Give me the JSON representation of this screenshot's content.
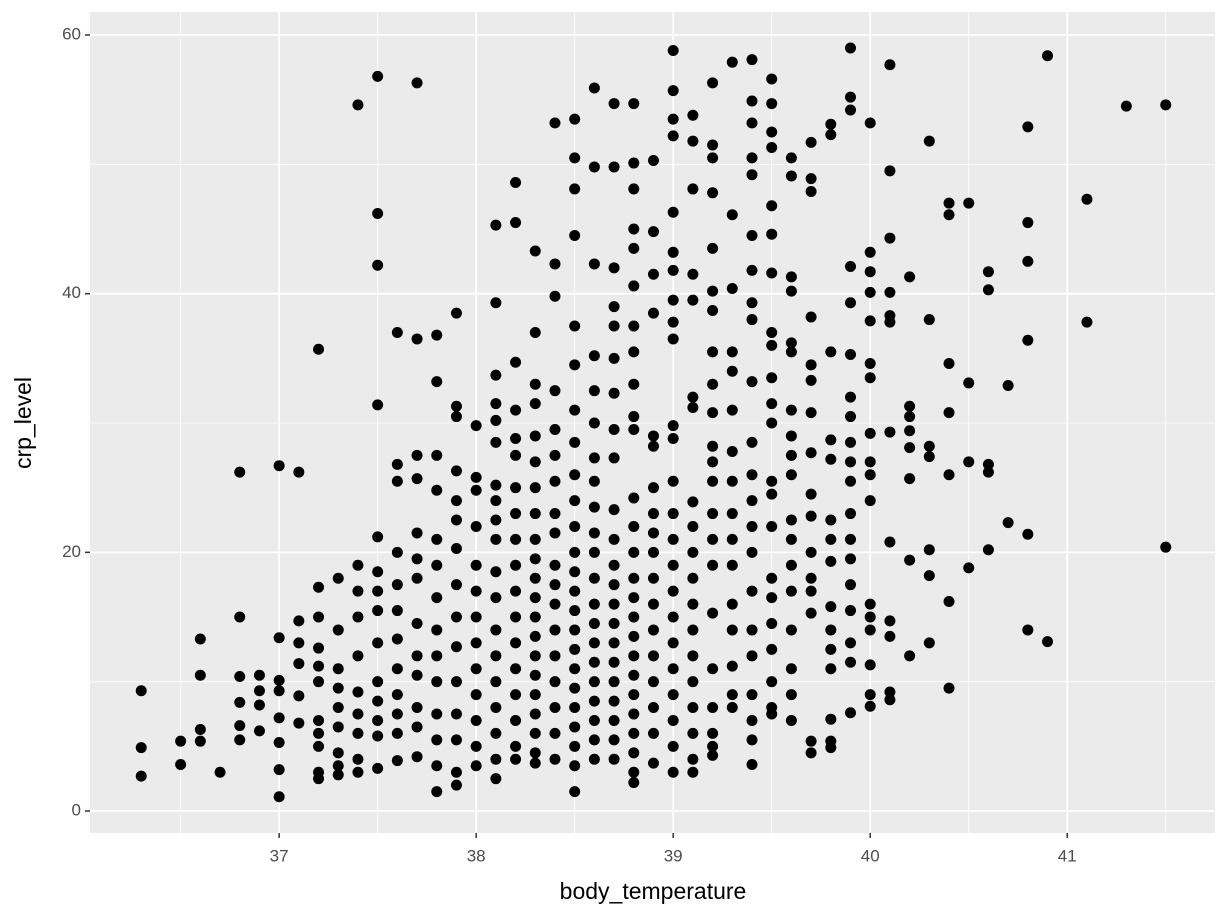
{
  "chart_data": {
    "type": "scatter",
    "x_label": "body_temperature",
    "y_label": "crp_level",
    "xlim": [
      36.04,
      41.75
    ],
    "ylim": [
      -1.7,
      61.78
    ],
    "xticks": [
      37,
      38,
      39,
      40,
      41
    ],
    "yticks": [
      0,
      20,
      40,
      60
    ],
    "grid": true,
    "color": "#000000",
    "x": [
      36.3,
      36.3,
      36.3,
      36.5,
      36.5,
      36.6,
      36.6,
      36.6,
      36.6,
      36.7,
      36.8,
      36.8,
      36.8,
      36.8,
      36.8,
      36.8,
      36.9,
      36.9,
      36.9,
      36.9,
      37.0,
      37.0,
      37.0,
      37.0,
      37.0,
      37.0,
      37.0,
      37.0,
      37.1,
      37.1,
      37.1,
      37.1,
      37.1,
      37.1,
      37.2,
      37.2,
      37.2,
      37.2,
      37.2,
      37.2,
      37.2,
      37.2,
      37.2,
      37.2,
      37.2,
      37.3,
      37.3,
      37.3,
      37.3,
      37.3,
      37.3,
      37.3,
      37.3,
      37.3,
      37.4,
      37.4,
      37.4,
      37.4,
      37.4,
      37.4,
      37.4,
      37.4,
      37.4,
      37.4,
      37.5,
      37.5,
      37.5,
      37.5,
      37.5,
      37.5,
      37.5,
      37.5,
      37.5,
      37.5,
      37.5,
      37.5,
      37.5,
      37.5,
      37.6,
      37.6,
      37.6,
      37.6,
      37.6,
      37.6,
      37.6,
      37.6,
      37.6,
      37.6,
      37.6,
      37.6,
      37.7,
      37.7,
      37.7,
      37.7,
      37.7,
      37.7,
      37.7,
      37.7,
      37.7,
      37.7,
      37.7,
      37.7,
      37.7,
      37.8,
      37.8,
      37.8,
      37.8,
      37.8,
      37.8,
      37.8,
      37.8,
      37.8,
      37.8,
      37.8,
      37.8,
      37.8,
      37.8,
      37.9,
      37.9,
      37.9,
      37.9,
      37.9,
      37.9,
      37.9,
      37.9,
      37.9,
      37.9,
      37.9,
      37.9,
      37.9,
      37.9,
      37.9,
      38.0,
      38.0,
      38.0,
      38.0,
      38.0,
      38.0,
      38.0,
      38.0,
      38.0,
      38.0,
      38.0,
      38.0,
      38.0,
      38.1,
      38.1,
      38.1,
      38.1,
      38.1,
      38.1,
      38.1,
      38.1,
      38.1,
      38.1,
      38.1,
      38.1,
      38.1,
      38.1,
      38.1,
      38.1,
      38.1,
      38.1,
      38.1,
      38.2,
      38.2,
      38.2,
      38.2,
      38.2,
      38.2,
      38.2,
      38.2,
      38.2,
      38.2,
      38.2,
      38.2,
      38.2,
      38.2,
      38.2,
      38.2,
      38.2,
      38.2,
      38.3,
      38.3,
      38.3,
      38.3,
      38.3,
      38.3,
      38.3,
      38.3,
      38.3,
      38.3,
      38.3,
      38.3,
      38.3,
      38.3,
      38.3,
      38.3,
      38.3,
      38.3,
      38.3,
      38.3,
      38.3,
      38.4,
      38.4,
      38.4,
      38.4,
      38.4,
      38.4,
      38.4,
      38.4,
      38.4,
      38.4,
      38.4,
      38.4,
      38.4,
      38.4,
      38.4,
      38.4,
      38.4,
      38.4,
      38.5,
      38.5,
      38.5,
      38.5,
      38.5,
      38.5,
      38.5,
      38.5,
      38.5,
      38.5,
      38.5,
      38.5,
      38.5,
      38.5,
      38.5,
      38.5,
      38.5,
      38.5,
      38.5,
      38.5,
      38.5,
      38.5,
      38.5,
      38.5,
      38.6,
      38.6,
      38.6,
      38.6,
      38.6,
      38.6,
      38.6,
      38.6,
      38.6,
      38.6,
      38.6,
      38.6,
      38.6,
      38.6,
      38.6,
      38.6,
      38.6,
      38.6,
      38.6,
      38.6,
      38.6,
      38.7,
      38.7,
      38.7,
      38.7,
      38.7,
      38.7,
      38.7,
      38.7,
      38.7,
      38.7,
      38.7,
      38.7,
      38.7,
      38.7,
      38.7,
      38.7,
      38.7,
      38.7,
      38.7,
      38.7,
      38.7,
      38.7,
      38.8,
      38.8,
      38.8,
      38.8,
      38.8,
      38.8,
      38.8,
      38.8,
      38.8,
      38.8,
      38.8,
      38.8,
      38.8,
      38.8,
      38.8,
      38.8,
      38.8,
      38.8,
      38.8,
      38.8,
      38.8,
      38.8,
      38.8,
      38.8,
      38.8,
      38.8,
      38.9,
      38.9,
      38.9,
      38.9,
      38.9,
      38.9,
      38.9,
      38.9,
      38.9,
      38.9,
      38.9,
      38.9,
      38.9,
      38.9,
      38.9,
      38.9,
      38.9,
      38.9,
      39.0,
      39.0,
      39.0,
      39.0,
      39.0,
      39.0,
      39.0,
      39.0,
      39.0,
      39.0,
      39.0,
      39.0,
      39.0,
      39.0,
      39.0,
      39.0,
      39.0,
      39.0,
      39.0,
      39.0,
      39.0,
      39.0,
      39.0,
      39.0,
      39.1,
      39.1,
      39.1,
      39.1,
      39.1,
      39.1,
      39.1,
      39.1,
      39.1,
      39.1,
      39.1,
      39.1,
      39.1,
      39.1,
      39.1,
      39.1,
      39.1,
      39.1,
      39.1,
      39.2,
      39.2,
      39.2,
      39.2,
      39.2,
      39.2,
      39.2,
      39.2,
      39.2,
      39.2,
      39.2,
      39.2,
      39.2,
      39.2,
      39.2,
      39.2,
      39.2,
      39.2,
      39.2,
      39.2,
      39.2,
      39.2,
      39.3,
      39.3,
      39.3,
      39.3,
      39.3,
      39.3,
      39.3,
      39.3,
      39.3,
      39.3,
      39.3,
      39.3,
      39.3,
      39.3,
      39.3,
      39.3,
      39.4,
      39.4,
      39.4,
      39.4,
      39.4,
      39.4,
      39.4,
      39.4,
      39.4,
      39.4,
      39.4,
      39.4,
      39.4,
      39.4,
      39.4,
      39.4,
      39.4,
      39.4,
      39.4,
      39.4,
      39.4,
      39.4,
      39.5,
      39.5,
      39.5,
      39.5,
      39.5,
      39.5,
      39.5,
      39.5,
      39.5,
      39.5,
      39.5,
      39.5,
      39.5,
      39.5,
      39.5,
      39.5,
      39.5,
      39.5,
      39.5,
      39.5,
      39.5,
      39.5,
      39.6,
      39.6,
      39.6,
      39.6,
      39.6,
      39.6,
      39.6,
      39.6,
      39.6,
      39.6,
      39.6,
      39.6,
      39.6,
      39.6,
      39.6,
      39.6,
      39.6,
      39.6,
      39.7,
      39.7,
      39.7,
      39.7,
      39.7,
      39.7,
      39.7,
      39.7,
      39.7,
      39.7,
      39.7,
      39.7,
      39.7,
      39.7,
      39.7,
      39.7,
      39.8,
      39.8,
      39.8,
      39.8,
      39.8,
      39.8,
      39.8,
      39.8,
      39.8,
      39.8,
      39.8,
      39.8,
      39.8,
      39.8,
      39.8,
      39.9,
      39.9,
      39.9,
      39.9,
      39.9,
      39.9,
      39.9,
      39.9,
      39.9,
      39.9,
      39.9,
      39.9,
      39.9,
      39.9,
      39.9,
      39.9,
      39.9,
      39.9,
      39.9,
      40.0,
      40.0,
      40.0,
      40.0,
      40.0,
      40.0,
      40.0,
      40.0,
      40.0,
      40.0,
      40.0,
      40.0,
      40.0,
      40.0,
      40.0,
      40.0,
      40.0,
      40.1,
      40.1,
      40.1,
      40.1,
      40.1,
      40.1,
      40.1,
      40.1,
      40.1,
      40.1,
      40.1,
      40.1,
      40.2,
      40.2,
      40.2,
      40.2,
      40.2,
      40.2,
      40.2,
      40.2,
      40.3,
      40.3,
      40.3,
      40.3,
      40.3,
      40.3,
      40.3,
      40.4,
      40.4,
      40.4,
      40.4,
      40.4,
      40.4,
      40.4,
      40.5,
      40.5,
      40.5,
      40.5,
      40.6,
      40.6,
      40.6,
      40.6,
      40.6,
      40.7,
      40.7,
      40.8,
      40.8,
      40.8,
      40.8,
      40.8,
      40.8,
      40.9,
      40.9,
      41.1,
      41.1,
      41.3,
      41.5,
      41.5
    ],
    "values": [
      9.3,
      4.9,
      2.7,
      5.4,
      3.6,
      13.3,
      10.5,
      6.3,
      5.4,
      3.0,
      26.2,
      15.0,
      10.4,
      8.4,
      6.6,
      5.5,
      10.5,
      9.3,
      8.2,
      6.2,
      26.7,
      13.4,
      10.1,
      9.3,
      7.2,
      5.3,
      3.2,
      1.1,
      26.2,
      14.7,
      13.0,
      11.4,
      8.9,
      6.8,
      35.7,
      17.3,
      15.0,
      12.6,
      11.2,
      10.0,
      7.0,
      6.0,
      5.0,
      3.0,
      2.5,
      18.0,
      14.0,
      11.0,
      9.5,
      8.0,
      6.5,
      4.5,
      3.5,
      2.8,
      54.6,
      19.0,
      17.0,
      15.0,
      12.0,
      9.2,
      7.5,
      6.0,
      4.0,
      3.0,
      56.8,
      46.2,
      42.2,
      31.4,
      21.2,
      18.5,
      17.0,
      15.5,
      13.0,
      10.0,
      8.5,
      7.0,
      5.8,
      3.3,
      37.0,
      26.8,
      25.5,
      20.0,
      17.5,
      15.5,
      13.3,
      11.0,
      9.0,
      7.5,
      6.0,
      3.9,
      56.3,
      36.5,
      27.5,
      25.7,
      21.5,
      19.5,
      18.0,
      14.5,
      12.0,
      10.5,
      8.0,
      6.5,
      4.2,
      36.8,
      33.2,
      27.5,
      24.8,
      21.0,
      19.0,
      16.5,
      14.0,
      12.0,
      10.0,
      7.5,
      5.5,
      3.5,
      1.5,
      38.5,
      31.3,
      30.5,
      26.3,
      24.0,
      22.5,
      20.3,
      17.5,
      15.0,
      12.7,
      10.0,
      7.5,
      5.5,
      3.0,
      2.0,
      29.8,
      25.8,
      24.8,
      22.0,
      19.0,
      17.0,
      15.0,
      13.0,
      11.0,
      9.0,
      7.0,
      5.0,
      3.5,
      45.3,
      39.3,
      33.7,
      31.5,
      30.2,
      28.5,
      25.2,
      24.0,
      22.5,
      21.0,
      18.5,
      16.5,
      14.0,
      12.0,
      10.0,
      8.0,
      6.0,
      4.0,
      2.5,
      48.6,
      45.5,
      34.7,
      31.0,
      28.8,
      27.5,
      25.0,
      23.0,
      21.0,
      19.0,
      17.0,
      15.0,
      13.0,
      11.0,
      9.0,
      7.0,
      5.0,
      4.0,
      43.3,
      37.0,
      33.0,
      31.5,
      29.0,
      27.0,
      25.0,
      23.0,
      21.0,
      19.5,
      18.0,
      16.5,
      15.0,
      13.5,
      12.0,
      10.5,
      9.0,
      7.5,
      6.0,
      4.5,
      3.7,
      53.2,
      42.3,
      39.8,
      32.5,
      29.5,
      27.5,
      25.5,
      23.0,
      21.5,
      19.0,
      17.5,
      16.0,
      14.0,
      12.0,
      10.0,
      8.0,
      6.0,
      4.0,
      53.5,
      50.5,
      48.1,
      44.5,
      37.5,
      34.5,
      31.0,
      28.5,
      26.0,
      24.0,
      22.0,
      20.0,
      18.5,
      17.0,
      15.5,
      14.0,
      12.5,
      11.0,
      9.5,
      8.0,
      6.5,
      5.0,
      3.5,
      1.5,
      55.9,
      49.8,
      42.3,
      35.2,
      32.5,
      30.0,
      27.3,
      25.5,
      23.5,
      21.5,
      20.0,
      18.0,
      16.0,
      14.5,
      13.0,
      11.5,
      10.0,
      8.5,
      7.0,
      5.5,
      4.0,
      54.7,
      49.8,
      42.0,
      39.0,
      37.5,
      35.0,
      32.3,
      29.5,
      27.3,
      23.3,
      21.0,
      19.0,
      17.5,
      16.0,
      14.5,
      13.0,
      11.5,
      10.0,
      8.5,
      7.0,
      5.5,
      4.0,
      54.7,
      50.1,
      48.1,
      45.0,
      43.5,
      40.6,
      37.5,
      35.5,
      33.0,
      30.5,
      29.5,
      24.2,
      22.0,
      20.0,
      18.0,
      16.5,
      15.0,
      13.5,
      12.0,
      10.5,
      9.0,
      7.5,
      6.0,
      4.5,
      3.0,
      2.2,
      50.3,
      44.8,
      41.5,
      38.5,
      29.0,
      28.2,
      25.0,
      23.0,
      21.5,
      20.0,
      18.0,
      16.0,
      14.0,
      12.0,
      10.0,
      8.0,
      6.0,
      3.7,
      58.8,
      55.7,
      53.5,
      52.2,
      46.3,
      43.2,
      41.8,
      39.5,
      37.8,
      36.5,
      29.8,
      28.8,
      25.5,
      23.0,
      21.0,
      19.0,
      17.0,
      15.0,
      13.0,
      11.0,
      9.0,
      7.0,
      5.0,
      3.0,
      53.8,
      51.8,
      48.1,
      41.5,
      39.5,
      32.0,
      31.2,
      23.9,
      22.0,
      20.0,
      18.0,
      16.0,
      14.0,
      12.0,
      10.0,
      8.0,
      6.0,
      4.0,
      3.0,
      56.3,
      51.5,
      50.5,
      47.8,
      43.5,
      40.2,
      38.7,
      35.5,
      33.0,
      30.8,
      28.2,
      27.0,
      25.5,
      23.0,
      21.0,
      19.0,
      15.3,
      11.0,
      8.0,
      6.0,
      5.0,
      4.3,
      57.9,
      46.1,
      40.4,
      35.5,
      34.0,
      31.0,
      27.8,
      25.5,
      23.0,
      21.0,
      19.0,
      16.0,
      14.0,
      11.2,
      9.0,
      8.0,
      58.1,
      54.9,
      53.2,
      50.5,
      49.2,
      44.5,
      41.8,
      39.3,
      38.0,
      33.2,
      28.5,
      26.0,
      24.0,
      22.0,
      20.0,
      17.0,
      14.0,
      12.0,
      9.0,
      7.0,
      5.5,
      3.6,
      56.6,
      54.7,
      52.5,
      51.3,
      46.8,
      44.6,
      41.6,
      37.0,
      36.0,
      33.5,
      31.5,
      30.0,
      25.5,
      24.5,
      22.0,
      18.0,
      16.5,
      14.5,
      12.5,
      10.0,
      8.0,
      7.5,
      50.5,
      49.1,
      41.3,
      40.2,
      36.2,
      35.5,
      31.0,
      29.0,
      27.5,
      26.0,
      22.5,
      21.0,
      19.0,
      17.0,
      14.0,
      11.0,
      9.0,
      7.0,
      51.7,
      48.9,
      47.9,
      38.2,
      34.5,
      33.3,
      30.8,
      27.7,
      24.5,
      22.8,
      20.0,
      18.0,
      17.0,
      15.3,
      5.4,
      4.5,
      53.1,
      52.3,
      35.5,
      28.7,
      27.2,
      22.5,
      21.0,
      19.3,
      15.8,
      14.0,
      12.5,
      11.0,
      7.1,
      5.4,
      4.9,
      59.0,
      55.2,
      54.2,
      42.1,
      39.3,
      35.3,
      32.0,
      30.5,
      28.5,
      27.0,
      25.5,
      23.0,
      21.0,
      19.5,
      17.5,
      15.5,
      13.0,
      11.5,
      7.6,
      53.2,
      43.2,
      41.7,
      40.1,
      37.9,
      34.6,
      33.5,
      29.2,
      27.0,
      26.0,
      24.0,
      16.0,
      15.0,
      14.0,
      11.3,
      9.0,
      8.1,
      57.7,
      49.5,
      44.3,
      40.1,
      38.3,
      37.8,
      29.3,
      20.8,
      14.7,
      13.5,
      9.2,
      8.6,
      41.3,
      31.3,
      30.5,
      29.4,
      28.1,
      25.7,
      19.4,
      12.0,
      51.8,
      38.0,
      28.2,
      27.4,
      20.2,
      18.2,
      13.0,
      47.0,
      46.1,
      34.6,
      30.8,
      26.0,
      16.2,
      9.5,
      47.0,
      33.1,
      27.0,
      18.8,
      41.7,
      40.3,
      26.8,
      26.2,
      20.2,
      32.9,
      22.3,
      52.9,
      45.5,
      42.5,
      36.4,
      21.4,
      14.0,
      58.4,
      13.1,
      47.3,
      37.8,
      54.5,
      54.6,
      20.4
    ]
  }
}
